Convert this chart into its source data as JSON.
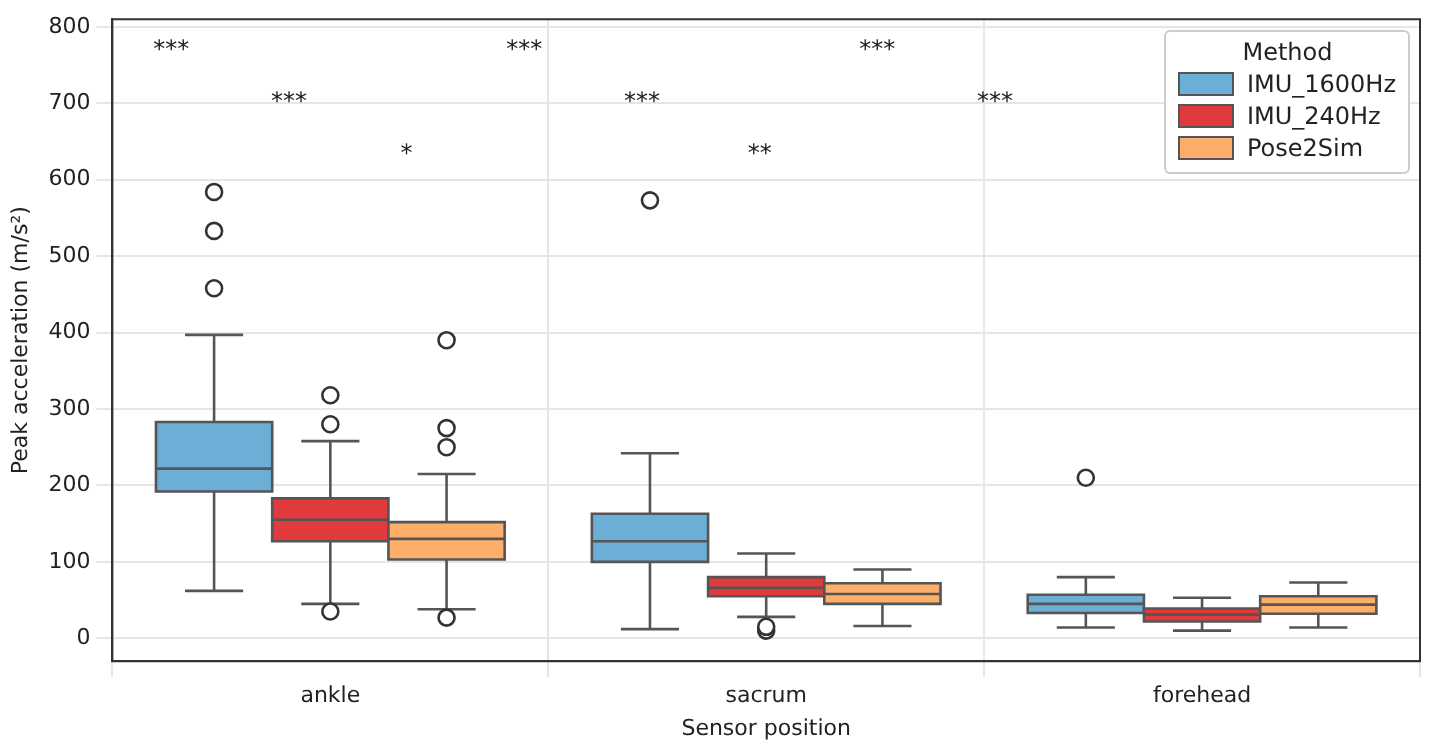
{
  "chart_data": {
    "type": "box",
    "xlabel": "Sensor position",
    "ylabel": "Peak acceleration (m/s²)",
    "legend_title": "Method",
    "legend": "top right",
    "grid": true,
    "categories": [
      "ankle",
      "sacrum",
      "forehead"
    ],
    "ylim": [
      -30,
      810
    ],
    "yticks": [
      0,
      100,
      200,
      300,
      400,
      500,
      600,
      700,
      800
    ],
    "series": [
      {
        "name": "IMU_1600Hz",
        "color": "#6baed6",
        "boxes": [
          {
            "low": 62,
            "q1": 192,
            "median": 222,
            "q3": 283,
            "high": 397,
            "outliers": [
              458,
              533,
              584
            ]
          },
          {
            "low": 12,
            "q1": 100,
            "median": 127,
            "q3": 163,
            "high": 242,
            "outliers": [
              573
            ]
          },
          {
            "low": 14,
            "q1": 33,
            "median": 45,
            "q3": 57,
            "high": 80,
            "outliers": [
              210
            ]
          }
        ]
      },
      {
        "name": "IMU_240Hz",
        "color": "#e03a3c",
        "boxes": [
          {
            "low": 45,
            "q1": 127,
            "median": 155,
            "q3": 183,
            "high": 258,
            "outliers": [
              35,
              280,
              318
            ]
          },
          {
            "low": 28,
            "q1": 55,
            "median": 66,
            "q3": 80,
            "high": 111,
            "outliers": [
              10,
              15
            ]
          },
          {
            "low": 10,
            "q1": 22,
            "median": 31,
            "q3": 39,
            "high": 53
          }
        ]
      },
      {
        "name": "Pose2Sim",
        "color": "#fdae6b",
        "boxes": [
          {
            "low": 38,
            "q1": 103,
            "median": 130,
            "q3": 152,
            "high": 215,
            "outliers": [
              27,
              250,
              275,
              390
            ]
          },
          {
            "low": 16,
            "q1": 45,
            "median": 58,
            "q3": 72,
            "high": 90
          },
          {
            "low": 14,
            "q1": 32,
            "median": 44,
            "q3": 55,
            "high": 73
          }
        ]
      }
    ],
    "annotations": [
      "***",
      "***",
      "*",
      "***",
      "***",
      "**",
      "***",
      "***"
    ]
  }
}
